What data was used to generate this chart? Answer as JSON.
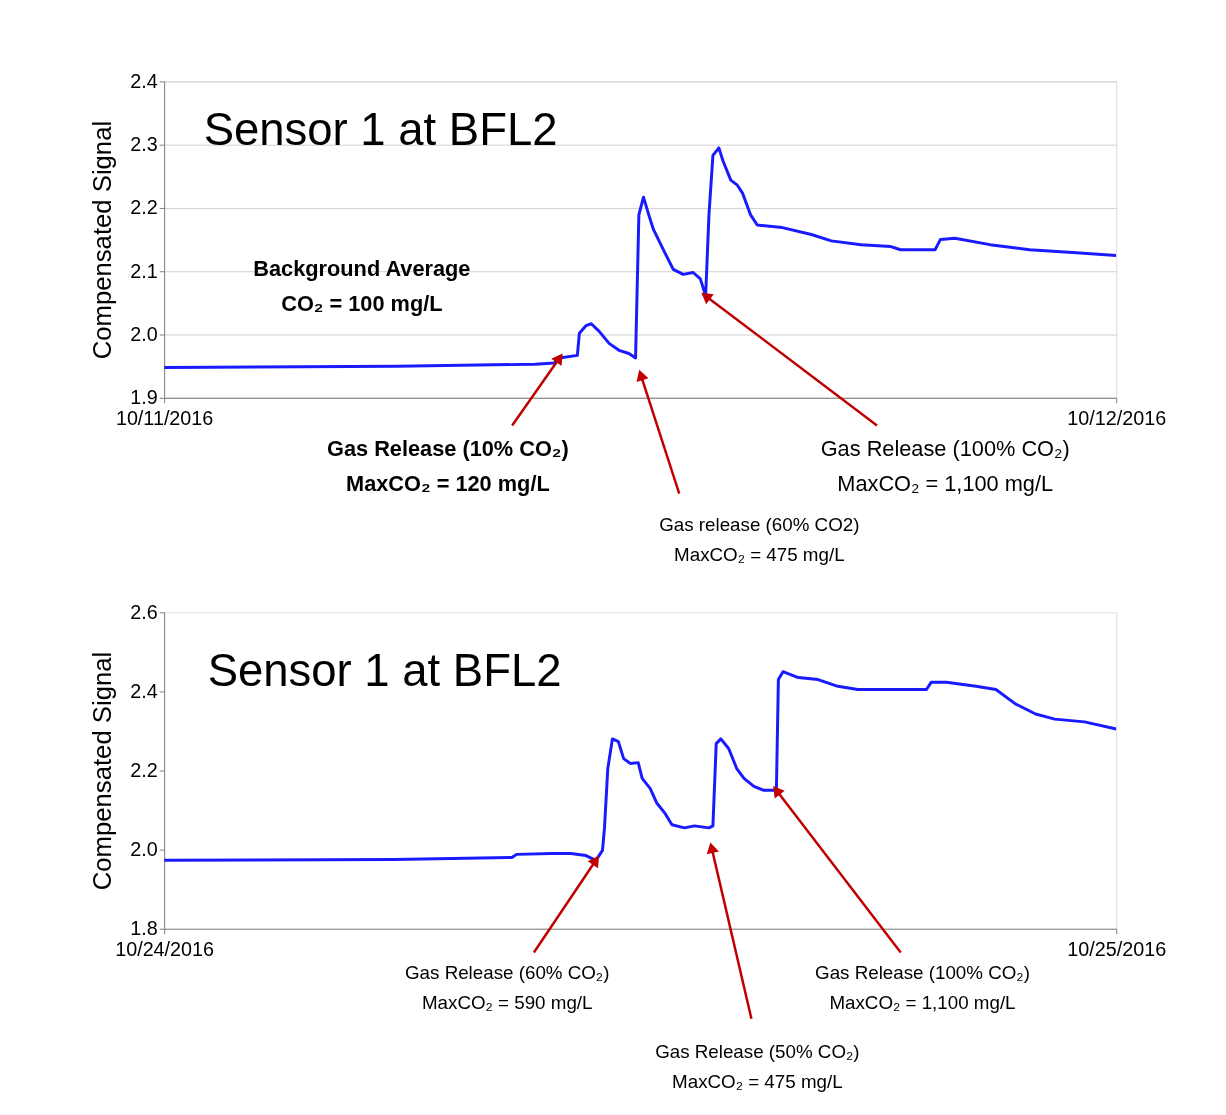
{
  "chart_data": [
    {
      "type": "line",
      "title": "Sensor 1 at BFL2",
      "ylabel": "Compensated Signal",
      "xlim": [
        "2016-10-11T00:00",
        "2016-10-12T00:00"
      ],
      "xticks": [
        {
          "value": "2016-10-11T00:00",
          "label": "10/11/2016"
        },
        {
          "value": "2016-10-12T00:00",
          "label": "10/12/2016"
        }
      ],
      "ylim": [
        1.9,
        2.4
      ],
      "yticks": [
        1.9,
        {
          "value": 2.0,
          "label": "2.0"
        },
        2.1,
        2.2,
        2.3,
        2.4
      ],
      "grid": "y",
      "series": [
        {
          "color": "#1a1aff",
          "x": [
            "2016-10-11T00:00",
            "2016-10-11T05:52",
            "2016-10-11T09:21",
            "2016-10-11T09:50",
            "2016-10-11T09:58",
            "2016-10-11T10:25",
            "2016-10-11T10:28",
            "2016-10-11T10:38",
            "2016-10-11T10:46",
            "2016-10-11T10:58",
            "2016-10-11T11:13",
            "2016-10-11T11:28",
            "2016-10-11T11:43",
            "2016-10-11T11:53",
            "2016-10-11T11:58",
            "2016-10-11T12:05",
            "2016-10-11T12:13",
            "2016-10-11T12:20",
            "2016-10-11T12:35",
            "2016-10-11T12:50",
            "2016-10-11T13:05",
            "2016-10-11T13:20",
            "2016-10-11T13:31",
            "2016-10-11T13:39",
            "2016-10-11T13:44",
            "2016-10-11T13:50",
            "2016-10-11T13:59",
            "2016-10-11T14:05",
            "2016-10-11T14:17",
            "2016-10-11T14:27",
            "2016-10-11T14:35",
            "2016-10-11T14:47",
            "2016-10-11T14:57",
            "2016-10-11T15:35",
            "2016-10-11T16:19",
            "2016-10-11T16:49",
            "2016-10-11T17:34",
            "2016-10-11T18:19",
            "2016-10-11T18:34",
            "2016-10-11T19:26",
            "2016-10-11T19:34",
            "2016-10-11T19:56",
            "2016-10-11T20:49",
            "2016-10-11T21:49",
            "2016-10-11T22:48",
            "2016-10-12T00:00"
          ],
          "values": [
            1.948,
            1.95,
            1.953,
            1.955,
            1.963,
            1.967,
            2.002,
            2.014,
            2.017,
            2.005,
            1.986,
            1.975,
            1.97,
            1.963,
            2.189,
            2.217,
            2.189,
            2.166,
            2.134,
            2.103,
            2.095,
            2.098,
            2.088,
            2.061,
            2.189,
            2.283,
            2.295,
            2.275,
            2.244,
            2.236,
            2.223,
            2.189,
            2.173,
            2.169,
            2.158,
            2.148,
            2.142,
            2.139,
            2.134,
            2.134,
            2.15,
            2.152,
            2.142,
            2.134,
            2.13,
            2.125
          ]
        }
      ],
      "annotations": [
        "Background Average\nCO₂ = 100 mg/L",
        {
          "text": "Gas Release (10% CO₂)\nMaxCO₂ = 120 mg/L",
          "x": "2016-10-11T09:58",
          "y": 1.963
        },
        {
          "text": "Gas release (60% CO2)\nMaxCO₂ =  475 mg/L",
          "x": "2016-10-11T12:01",
          "y": 1.936
        },
        {
          "text": "Gas Release (100% CO₂)\nMaxCO₂ = 1,100 mg/L",
          "x": "2016-10-11T13:39",
          "y": 2.061
        }
      ]
    },
    {
      "type": "line",
      "title": "Sensor 1 at BFL2",
      "ylabel": "Compensated Signal",
      "xlim": [
        "2016-10-24T00:00",
        "2016-10-25T00:00"
      ],
      "xticks": [
        {
          "value": "2016-10-24T00:00",
          "label": "10/24/2016"
        },
        {
          "value": "2016-10-25T00:00",
          "label": "10/25/2016"
        }
      ],
      "ylim": [
        1.8,
        2.6
      ],
      "yticks": [
        1.8,
        {
          "value": 2.0,
          "label": "2.0"
        },
        2.2,
        2.4,
        2.6
      ],
      "grid": false,
      "series": [
        {
          "color": "#1a1aff",
          "x": [
            "2016-10-24T00:00",
            "2016-10-24T05:47",
            "2016-10-24T08:46",
            "2016-10-24T08:53",
            "2016-10-24T09:46",
            "2016-10-24T10:15",
            "2016-10-24T10:38",
            "2016-10-24T10:53",
            "2016-10-24T11:03",
            "2016-10-24T11:06",
            "2016-10-24T11:11",
            "2016-10-24T11:18",
            "2016-10-24T11:27",
            "2016-10-24T11:35",
            "2016-10-24T11:45",
            "2016-10-24T11:57",
            "2016-10-24T12:03",
            "2016-10-24T12:15",
            "2016-10-24T12:25",
            "2016-10-24T12:37",
            "2016-10-24T12:48",
            "2016-10-24T13:07",
            "2016-10-24T13:22",
            "2016-10-24T13:44",
            "2016-10-24T13:50",
            "2016-10-24T13:55",
            "2016-10-24T14:02",
            "2016-10-24T14:14",
            "2016-10-24T14:26",
            "2016-10-24T14:37",
            "2016-10-24T14:52",
            "2016-10-24T15:07",
            "2016-10-24T15:26",
            "2016-10-24T15:29",
            "2016-10-24T15:36",
            "2016-10-24T15:59",
            "2016-10-24T16:29",
            "2016-10-24T16:59",
            "2016-10-24T17:29",
            "2016-10-24T18:13",
            "2016-10-24T19:13",
            "2016-10-24T19:20",
            "2016-10-24T19:43",
            "2016-10-24T20:28",
            "2016-10-24T20:58",
            "2016-10-24T21:28",
            "2016-10-24T21:58",
            "2016-10-24T22:27",
            "2016-10-24T23:12",
            "2016-10-25T00:00"
          ],
          "values": [
            1.973,
            1.975,
            1.98,
            1.988,
            1.99,
            1.99,
            1.985,
            1.973,
            1.998,
            2.055,
            2.205,
            2.28,
            2.273,
            2.23,
            2.218,
            2.22,
            2.18,
            2.155,
            2.118,
            2.093,
            2.063,
            2.055,
            2.06,
            2.055,
            2.06,
            2.268,
            2.28,
            2.255,
            2.205,
            2.18,
            2.16,
            2.15,
            2.15,
            2.43,
            2.45,
            2.435,
            2.43,
            2.413,
            2.405,
            2.405,
            2.405,
            2.423,
            2.423,
            2.413,
            2.405,
            2.368,
            2.343,
            2.33,
            2.323,
            2.305
          ]
        }
      ],
      "annotations": [
        {
          "text": "Gas Release (60% CO₂)\nMaxCO₂ = 590 mg/L",
          "x": "2016-10-24T10:53",
          "y": 1.973
        },
        {
          "text": "Gas Release (50% CO₂)\nMaxCO₂ = 475 mg/L",
          "x": "2016-10-24T13:48",
          "y": 2.005
        },
        {
          "text": "Gas Release (100% CO₂)\nMaxCO₂ = 1,100 mg/L",
          "x": "2016-10-24T15:26",
          "y": 2.15
        }
      ]
    }
  ]
}
